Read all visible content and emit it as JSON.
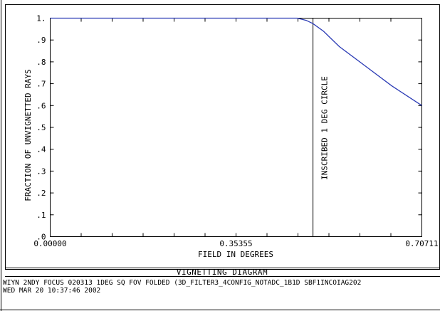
{
  "chart_data": {
    "type": "line",
    "title": "VIGNETTING DIAGRAM",
    "xlabel": "FIELD IN DEGREES",
    "ylabel": "FRACTION OF UNVIGNETTED RAYS",
    "xlim": [
      0,
      0.70711
    ],
    "ylim": [
      0,
      1.0
    ],
    "x_tick_labels": [
      "0.00000",
      "0.35355",
      "0.70711"
    ],
    "x_tick_values": [
      0,
      0.35355,
      0.70711
    ],
    "y_tick_labels": [
      ".0",
      ".1",
      ".2",
      ".3",
      ".4",
      ".5",
      ".6",
      ".7",
      ".8",
      ".9",
      "1."
    ],
    "y_tick_values": [
      0,
      0.1,
      0.2,
      0.3,
      0.4,
      0.5,
      0.6,
      0.7,
      0.8,
      0.9,
      1.0
    ],
    "series": [
      {
        "color": "#2b3bb5",
        "x": [
          0.0,
          0.2,
          0.4,
          0.47,
          0.487,
          0.5,
          0.52,
          0.55,
          0.6,
          0.65,
          0.70711
        ],
        "y": [
          1.0,
          1.0,
          1.0,
          1.0,
          0.99,
          0.975,
          0.94,
          0.87,
          0.78,
          0.69,
          0.6
        ]
      }
    ],
    "vertical_line": {
      "x": 0.5,
      "color": "#000000"
    },
    "annotation": "INSCRIBED 1 DEG CIRCLE",
    "grid": false
  },
  "footer": {
    "line1": "WIYN 2NDY FOCUS 020313  1DEG SQ FOV FOLDED (3D_FILTER3_4CONFIG_NOTADC_1B1D SBF1INCOIAG202",
    "line2": "WED MAR 20 10:37:46 2002"
  }
}
